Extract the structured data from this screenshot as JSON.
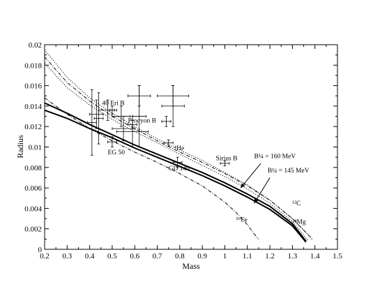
{
  "chart_data": {
    "type": "line",
    "title": "",
    "xlabel": "Mass",
    "ylabel": "Radius",
    "xlim": [
      0.2,
      1.5
    ],
    "ylim": [
      0,
      0.02
    ],
    "x_ticks": [
      "0.2",
      "0.3",
      "0.4",
      "0.5",
      "0.6",
      "0.7",
      "0.8",
      "0.9",
      "1",
      "1.1",
      "1.2",
      "1.3",
      "1.4",
      "1.5"
    ],
    "y_ticks": [
      "0",
      "0.002",
      "0.004",
      "0.006",
      "0.008",
      "0.01",
      "0.012",
      "0.014",
      "0.016",
      "0.018",
      "0.02"
    ],
    "grid": false,
    "series": [
      {
        "style": "solid-thick",
        "x": [
          0.2,
          0.3,
          0.4,
          0.5,
          0.6,
          0.7,
          0.8,
          0.9,
          1.0,
          1.1,
          1.2,
          1.3,
          1.36
        ],
        "y": [
          0.0143,
          0.0133,
          0.0122,
          0.0112,
          0.0102,
          0.0093,
          0.0084,
          0.0075,
          0.0065,
          0.0054,
          0.0042,
          0.0025,
          0.0008
        ]
      },
      {
        "style": "solid-thick",
        "x": [
          0.2,
          0.3,
          0.4,
          0.5,
          0.6,
          0.7,
          0.8,
          0.9,
          1.0,
          1.1,
          1.2,
          1.3,
          1.36
        ],
        "y": [
          0.0136,
          0.0128,
          0.0118,
          0.0109,
          0.0099,
          0.009,
          0.0081,
          0.0072,
          0.0062,
          0.0051,
          0.0039,
          0.0023,
          0.0007
        ]
      },
      {
        "style": "dotted",
        "x": [
          0.2,
          0.3,
          0.4,
          0.5,
          0.6,
          0.7,
          0.8,
          0.9,
          1.0,
          1.1,
          1.2,
          1.3,
          1.38,
          1.39
        ],
        "y": [
          0.0195,
          0.0168,
          0.0148,
          0.0133,
          0.012,
          0.0108,
          0.0097,
          0.0087,
          0.0075,
          0.0063,
          0.0048,
          0.003,
          0.0012,
          0.0009
        ]
      },
      {
        "style": "dash-dot",
        "x": [
          0.2,
          0.3,
          0.4,
          0.5,
          0.6,
          0.7,
          0.8,
          0.9,
          1.0,
          1.1,
          1.2,
          1.3,
          1.38,
          1.39
        ],
        "y": [
          0.0188,
          0.0163,
          0.0145,
          0.013,
          0.0118,
          0.0106,
          0.0095,
          0.0085,
          0.0074,
          0.0062,
          0.0048,
          0.003,
          0.0012,
          0.0009
        ]
      },
      {
        "style": "dotted",
        "x": [
          0.2,
          0.3,
          0.4,
          0.5,
          0.6,
          0.7,
          0.8,
          0.9,
          1.0,
          1.1,
          1.2,
          1.3,
          1.36,
          1.37
        ],
        "y": [
          0.0182,
          0.0158,
          0.0141,
          0.0127,
          0.0115,
          0.0104,
          0.0093,
          0.0082,
          0.0071,
          0.0059,
          0.0045,
          0.0027,
          0.0011,
          0.0008
        ]
      },
      {
        "style": "dash-dot",
        "x": [
          0.2,
          0.3,
          0.4,
          0.5,
          0.6,
          0.7,
          0.8,
          0.9,
          1.0,
          1.05,
          1.1,
          1.13,
          1.15
        ],
        "y": [
          0.0148,
          0.0132,
          0.0118,
          0.0106,
          0.0095,
          0.0085,
          0.0074,
          0.0062,
          0.0046,
          0.0036,
          0.0024,
          0.0015,
          0.001
        ]
      }
    ],
    "observations": [
      {
        "x": 0.41,
        "y": 0.0124,
        "xerr": 0.02,
        "yerr": 0.0032
      },
      {
        "x": 0.43,
        "y": 0.0132,
        "xerr": 0.03,
        "yerr": 0.0014
      },
      {
        "x": 0.44,
        "y": 0.0128,
        "xerr": 0.02,
        "yerr": 0.0025
      },
      {
        "x": 0.48,
        "y": 0.0136,
        "xerr": 0.04,
        "yerr": 0.001
      },
      {
        "x": 0.5,
        "y": 0.0136,
        "xerr": 0.01,
        "yerr": 0.0004
      },
      {
        "x": 0.5,
        "y": 0.0105,
        "xerr": 0.02,
        "yerr": 0.0005
      },
      {
        "x": 0.54,
        "y": 0.013,
        "xerr": 0.04,
        "yerr": 0.001
      },
      {
        "x": 0.55,
        "y": 0.0118,
        "xerr": 0.05,
        "yerr": 0.0012
      },
      {
        "x": 0.59,
        "y": 0.0122,
        "xerr": 0.02,
        "yerr": 0.0004
      },
      {
        "x": 0.59,
        "y": 0.0115,
        "xerr": 0.07,
        "yerr": 0.0015
      },
      {
        "x": 0.62,
        "y": 0.015,
        "xerr": 0.05,
        "yerr": 0.001
      },
      {
        "x": 0.62,
        "y": 0.013,
        "xerr": 0.03,
        "yerr": 0.003
      },
      {
        "x": 0.74,
        "y": 0.0125,
        "xerr": 0.02,
        "yerr": 0.0005
      },
      {
        "x": 0.75,
        "y": 0.0104,
        "xerr": 0.02,
        "yerr": 0.0003
      },
      {
        "x": 0.77,
        "y": 0.015,
        "xerr": 0.07,
        "yerr": 0.001
      },
      {
        "x": 0.77,
        "y": 0.014,
        "xerr": 0.05,
        "yerr": 0.002
      },
      {
        "x": 0.79,
        "y": 0.0085,
        "xerr": 0.02,
        "yerr": 0.0005
      },
      {
        "x": 1.0,
        "y": 0.0084,
        "xerr": 0.02,
        "yerr": 0.00025
      }
    ],
    "annotations": [
      {
        "label": "40 Eri B",
        "x": 0.455,
        "y": 0.0141
      },
      {
        "label": "Procyon B",
        "x": 0.57,
        "y": 0.0124
      },
      {
        "label": "EG 50",
        "x": 0.48,
        "y": 0.0093
      },
      {
        "label": "GD 140",
        "x": 0.75,
        "y": 0.0077
      },
      {
        "label": "Sirius B",
        "x": 0.96,
        "y": 0.0087
      },
      {
        "label": "⁴He",
        "x": 0.775,
        "y": 0.0097
      },
      {
        "label": "¹²C",
        "x": 1.3,
        "y": 0.0043
      },
      {
        "label": "²⁴Mg",
        "x": 1.3,
        "y": 0.0025
      },
      {
        "label": "⁵⁶Fe",
        "x": 1.05,
        "y": 0.0027
      },
      {
        "label": "B¼ = 160 MeV",
        "x": 1.13,
        "y": 0.0089
      },
      {
        "label": "B¼ = 145 MeV",
        "x": 1.19,
        "y": 0.0075
      }
    ],
    "arrows": [
      {
        "from": [
          1.16,
          0.0084
        ],
        "to": [
          1.07,
          0.006
        ]
      },
      {
        "from": [
          1.2,
          0.007
        ],
        "to": [
          1.13,
          0.0045
        ]
      }
    ]
  }
}
